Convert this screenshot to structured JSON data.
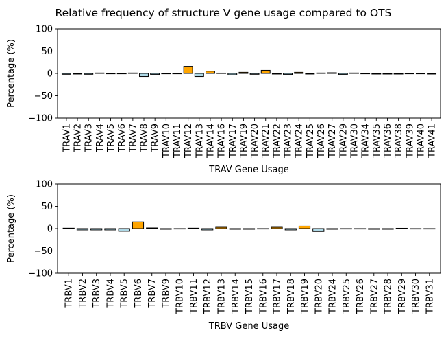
{
  "figure": {
    "title": "Relative frequency of structure V gene usage compared to OTS"
  },
  "colors": {
    "positive": "#ffa500",
    "negative": "#add8e6",
    "edge": "#000000"
  },
  "chart_data": [
    {
      "type": "bar",
      "xlabel": "TRAV Gene Usage",
      "ylabel": "Percentage (%)",
      "ylim": [
        -100,
        100
      ],
      "yticks": [
        -100,
        -50,
        0,
        50,
        100
      ],
      "grid": false,
      "categories": [
        "TRAV1",
        "TRAV2",
        "TRAV3",
        "TRAV4",
        "TRAV5",
        "TRAV6",
        "TRAV7",
        "TRAV8",
        "TRAV9",
        "TRAV10",
        "TRAV11",
        "TRAV12",
        "TRAV13",
        "TRAV14",
        "TRAV16",
        "TRAV17",
        "TRAV19",
        "TRAV20",
        "TRAV21",
        "TRAV22",
        "TRAV23",
        "TRAV24",
        "TRAV25",
        "TRAV26",
        "TRAV27",
        "TRAV29",
        "TRAV30",
        "TRAV34",
        "TRAV35",
        "TRAV36",
        "TRAV38",
        "TRAV39",
        "TRAV40",
        "TRAV41"
      ],
      "values": [
        -2,
        -1.5,
        -2,
        1,
        -0.5,
        0,
        1,
        -7,
        -2.5,
        -0.5,
        0,
        16,
        -7,
        5,
        0.8,
        -3,
        2.5,
        -2,
        7,
        -1.5,
        -2.5,
        2.5,
        -1.5,
        1,
        1.5,
        -2.5,
        1,
        -0.5,
        -1.5,
        -1.5,
        -1.5,
        0,
        0,
        -1.5
      ]
    },
    {
      "type": "bar",
      "xlabel": "TRBV Gene Usage",
      "ylabel": "Percentage (%)",
      "ylim": [
        -100,
        100
      ],
      "yticks": [
        -100,
        -50,
        0,
        50,
        100
      ],
      "grid": false,
      "categories": [
        "TRBV1",
        "TRBV2",
        "TRBV3",
        "TRBV4",
        "TRBV5",
        "TRBV6",
        "TRBV7",
        "TRBV9",
        "TRBV10",
        "TRBV11",
        "TRBV12",
        "TRBV13",
        "TRBV14",
        "TRBV15",
        "TRBV16",
        "TRBV17",
        "TRBV18",
        "TRBV19",
        "TRBV20",
        "TRBV24",
        "TRBV25",
        "TRBV26",
        "TRBV27",
        "TRBV28",
        "TRBV29",
        "TRBV30",
        "TRBV31"
      ],
      "values": [
        1,
        -3,
        -3,
        -3,
        -6,
        15,
        1.5,
        -1.5,
        -0.5,
        1,
        -3,
        3,
        -1.5,
        -1.5,
        -0.5,
        3,
        -3,
        5.5,
        -6.5,
        -1.5,
        -0.5,
        0,
        -1.5,
        -1.5,
        0.8,
        -0.5,
        -0.5
      ]
    }
  ]
}
